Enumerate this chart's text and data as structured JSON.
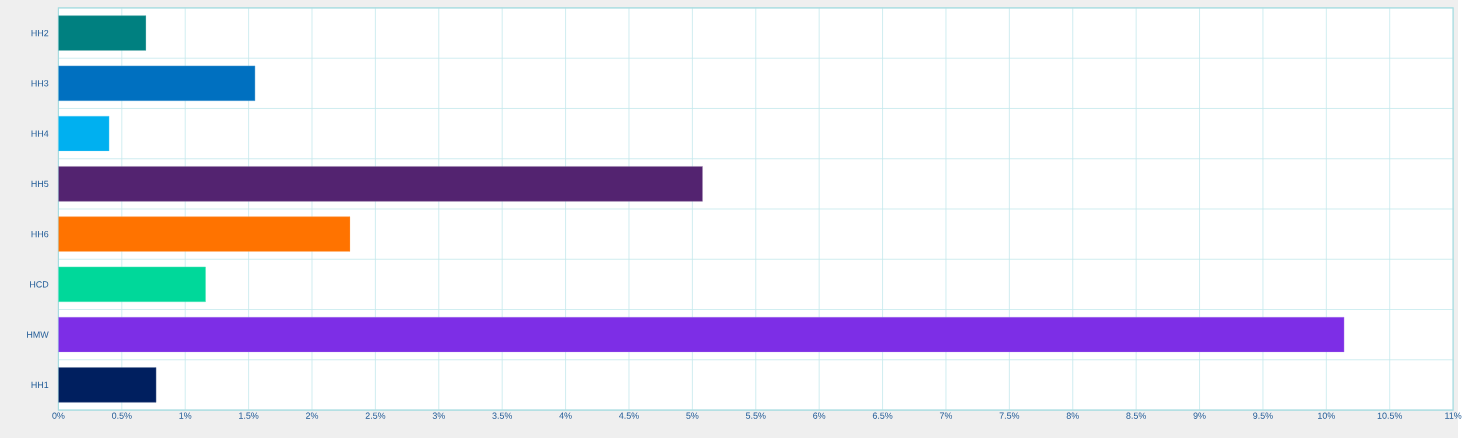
{
  "chart_data": {
    "type": "bar",
    "orientation": "horizontal",
    "categories": [
      "HH2",
      "HH3",
      "HH4",
      "HH5",
      "HH6",
      "HCD",
      "HMW",
      "HH1"
    ],
    "values": [
      0.69,
      1.55,
      0.4,
      5.08,
      2.3,
      1.16,
      10.14,
      0.77
    ],
    "colors": [
      "#008080",
      "#0070c0",
      "#00b0f0",
      "#532370",
      "#ff7300",
      "#00d89a",
      "#7d2ee6",
      "#001f5f"
    ],
    "xlim": [
      0,
      11
    ],
    "xticks": [
      {
        "value": 0,
        "label": "0%"
      },
      {
        "value": 0.5,
        "label": "0.5%"
      },
      {
        "value": 1,
        "label": "1%"
      },
      {
        "value": 1.5,
        "label": "1.5%"
      },
      {
        "value": 2,
        "label": "2%"
      },
      {
        "value": 2.5,
        "label": "2.5%"
      },
      {
        "value": 3,
        "label": "3%"
      },
      {
        "value": 3.5,
        "label": "3.5%"
      },
      {
        "value": 4,
        "label": "4%"
      },
      {
        "value": 4.5,
        "label": "4.5%"
      },
      {
        "value": 5,
        "label": "5%"
      },
      {
        "value": 5.5,
        "label": "5.5%"
      },
      {
        "value": 6,
        "label": "6%"
      },
      {
        "value": 6.5,
        "label": "6.5%"
      },
      {
        "value": 7,
        "label": "7%"
      },
      {
        "value": 7.5,
        "label": "7.5%"
      },
      {
        "value": 8,
        "label": "8%"
      },
      {
        "value": 8.5,
        "label": "8.5%"
      },
      {
        "value": 9,
        "label": "9%"
      },
      {
        "value": 9.5,
        "label": "9.5%"
      },
      {
        "value": 10,
        "label": "10%"
      },
      {
        "value": 10.5,
        "label": "10.5%"
      },
      {
        "value": 11,
        "label": "11%"
      }
    ],
    "grid": true
  }
}
